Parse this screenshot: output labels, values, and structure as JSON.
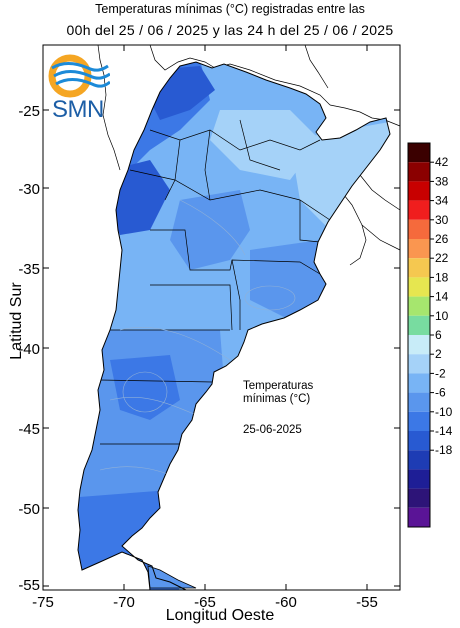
{
  "title_line1": "Temperaturas mínimas (°C) registradas entre las",
  "title_line2": "00h del 25 / 06 / 2025 y las 24 h del 25 / 06 / 2025",
  "logo_text": "SMN",
  "axes": {
    "ylabel": "Latitud Sur",
    "xlabel": "Longitud Oeste",
    "y_ticks": [
      "-25",
      "-30",
      "-35",
      "-40",
      "-45",
      "-50",
      "-55"
    ],
    "x_ticks": [
      "-75",
      "-70",
      "-65",
      "-60",
      "-55"
    ]
  },
  "annotation": {
    "line1": "Temperaturas",
    "line2": "mínimas (°C)",
    "date": "25-06-2025"
  },
  "colorbar": {
    "labels": [
      "42",
      "38",
      "34",
      "30",
      "26",
      "22",
      "18",
      "14",
      "10",
      "6",
      "2",
      "-2",
      "-6",
      "-10",
      "-14",
      "-18"
    ],
    "colors": [
      "#3b0000",
      "#8b0000",
      "#c80000",
      "#f01e1e",
      "#f56a3c",
      "#fa9650",
      "#f5c850",
      "#e6e650",
      "#a6e66e",
      "#78dca0",
      "#c8ecf8",
      "#a5d2f8",
      "#78b4f5",
      "#5a96ed",
      "#3c78e6",
      "#285ad2",
      "#1e3cb4",
      "#1e1e96",
      "#2d1478",
      "#5a1496"
    ]
  }
}
